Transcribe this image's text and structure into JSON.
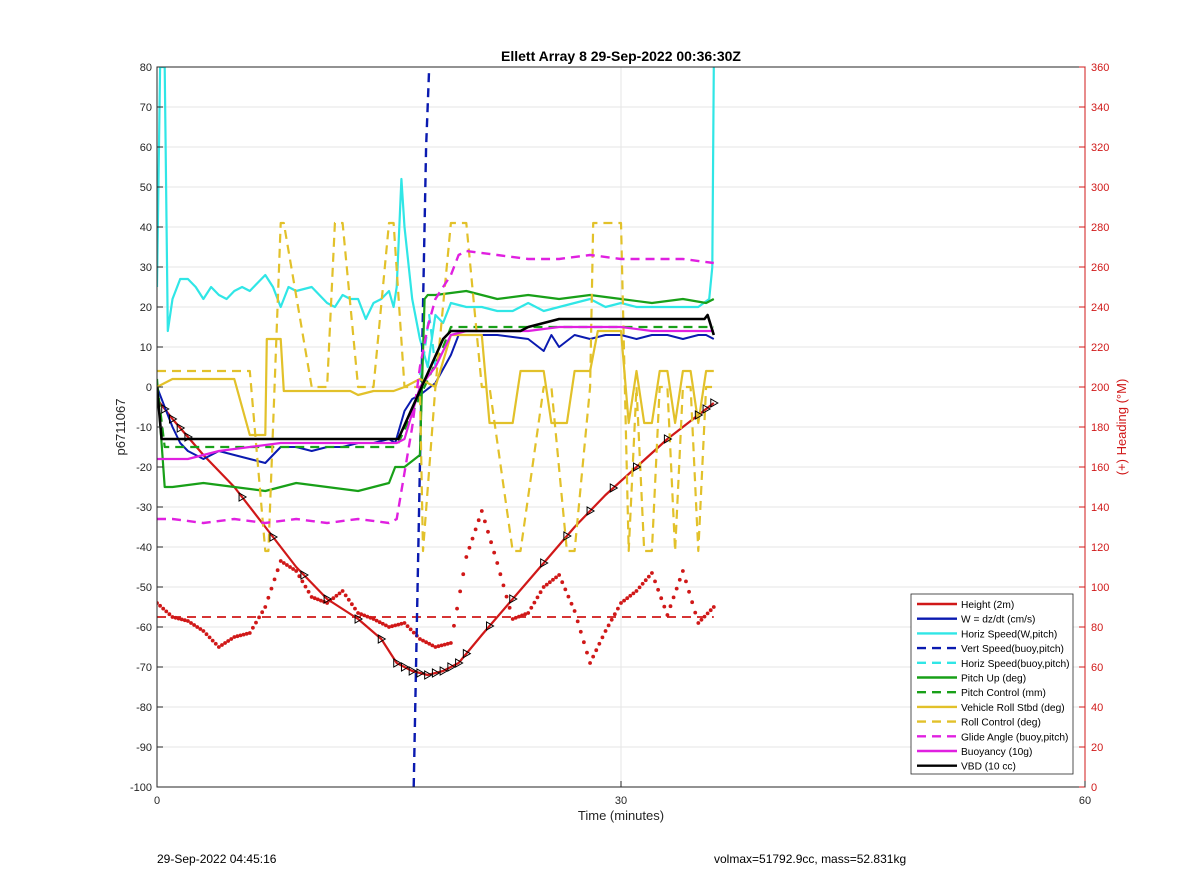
{
  "chart_data": {
    "type": "line",
    "title": "Ellett Array 8 29-Sep-2022 00:36:30Z",
    "xlabel": "Time (minutes)",
    "ylabel": "p6711067",
    "ylabel_right": "(+) Heading (°M)",
    "xlim": [
      0,
      60
    ],
    "ylim": [
      -100,
      80
    ],
    "ylim_right": [
      0,
      360
    ],
    "xticks": [
      0,
      30,
      60
    ],
    "yticks": [
      80,
      70,
      60,
      50,
      40,
      30,
      20,
      10,
      0,
      -10,
      -20,
      -30,
      -40,
      -50,
      -60,
      -70,
      -80,
      -90,
      -100
    ],
    "yticks_right": [
      360,
      340,
      320,
      300,
      280,
      260,
      240,
      220,
      200,
      180,
      160,
      140,
      120,
      100,
      80,
      60,
      40,
      20,
      0
    ],
    "grid": true,
    "legend_position": "bottom-right",
    "colors": {
      "height": "#d01818",
      "w": "#0a1ab0",
      "horiz": "#30e6e6",
      "vert_buoy": "#0a1ab0",
      "pitch": "#18a018",
      "roll": "#e2c12a",
      "glide": "#e020e0",
      "buoy": "#e020e0",
      "vbd": "#000000",
      "heading": "#d01818",
      "right_axis": "#d01818"
    },
    "series": [
      {
        "name": "Height (2m)",
        "key": "height",
        "style": "solid",
        "width": 2.2,
        "x": [
          0,
          1,
          3,
          5,
          7,
          9,
          11,
          13,
          14.5,
          15.5,
          16.5,
          17.5,
          18.5,
          19.5,
          21,
          23,
          25,
          27,
          29,
          31,
          33,
          35,
          36
        ],
        "y": [
          -3,
          -8,
          -17,
          -25,
          -35,
          -45,
          -53,
          -58,
          -63,
          -69,
          -71,
          -72,
          -71,
          -69,
          -62,
          -53,
          -44,
          -35,
          -27,
          -20,
          -13,
          -7,
          -4
        ]
      },
      {
        "name": "W = dz/dt (cm/s)",
        "key": "w",
        "style": "solid",
        "width": 2,
        "x": [
          0,
          0.5,
          1,
          1.5,
          2,
          3,
          4,
          5,
          6,
          7,
          8,
          9,
          10,
          11,
          12,
          13,
          14,
          15,
          15.4,
          16,
          16.5,
          17,
          18,
          19,
          19.5,
          20,
          22,
          24,
          25,
          25.5,
          26,
          27,
          28,
          29,
          30,
          31,
          32,
          33,
          34,
          35,
          35.5,
          36
        ],
        "y": [
          0,
          -5,
          -10,
          -14,
          -16,
          -18,
          -16,
          -17,
          -18,
          -19,
          -15,
          -15,
          -16,
          -15,
          -15,
          -14,
          -14,
          -13,
          -14,
          -6,
          -3,
          -2,
          1,
          8,
          13,
          13,
          13,
          12,
          9,
          13,
          10,
          13,
          12,
          13,
          13,
          12,
          13,
          13,
          12,
          13,
          13,
          12
        ]
      },
      {
        "name": "Horiz Speed(W,pitch)",
        "key": "horiz",
        "style": "solid",
        "width": 2.2,
        "x": [
          0,
          0.2,
          0.3,
          0.5,
          0.7,
          1,
          1.5,
          2,
          2.5,
          3,
          3.5,
          4,
          4.5,
          5,
          5.5,
          6,
          6.5,
          7,
          7.5,
          8,
          8.5,
          9,
          10,
          11,
          11.5,
          12,
          12.5,
          13,
          13.5,
          14,
          14.5,
          15,
          15.3,
          15.5,
          15.8,
          16,
          16.5,
          17,
          17.5,
          18,
          18.5,
          19,
          20,
          21,
          22,
          23,
          24,
          25,
          26,
          27,
          28,
          29,
          30,
          31,
          32,
          33,
          34,
          35,
          35.7,
          35.9,
          36
        ],
        "y": [
          25,
          80,
          80,
          80,
          14,
          22,
          27,
          27,
          25,
          22,
          25,
          23,
          22,
          24,
          25,
          24,
          26,
          28,
          25,
          20,
          25,
          24,
          25,
          21,
          20,
          23,
          22,
          22,
          17,
          21,
          22,
          24,
          20,
          25,
          52,
          40,
          22,
          12,
          5,
          18,
          16,
          21,
          20,
          20,
          19,
          19,
          21,
          19,
          20,
          21,
          22,
          20,
          21,
          20,
          20,
          20,
          20,
          20,
          22,
          30,
          80
        ]
      },
      {
        "name": "Vert Speed(buoy,pitch)",
        "key": "vert_buoy",
        "style": "dashed",
        "width": 2.4,
        "x": [
          16.6,
          16.8,
          17,
          17.2,
          17.4,
          17.6
        ],
        "y": [
          -100,
          -60,
          -20,
          20,
          60,
          80
        ]
      },
      {
        "name": "Horiz Speed(buoy,pitch)",
        "key": "horiz",
        "style": "dashed",
        "width": 2.2,
        "x": [
          17,
          17.3,
          17.6,
          18
        ],
        "y": [
          3,
          9,
          18,
          5
        ]
      },
      {
        "name": "Pitch Up (deg)",
        "key": "pitch",
        "style": "solid",
        "width": 2.2,
        "x": [
          0,
          0.5,
          1,
          3,
          5,
          7,
          9,
          11,
          13,
          15,
          15.4,
          15.5,
          16,
          17,
          17.3,
          17.5,
          18,
          20,
          22,
          24,
          26,
          28,
          30,
          32,
          34,
          35.5,
          36
        ],
        "y": [
          2,
          -25,
          -25,
          -24,
          -25,
          -26,
          -24,
          -25,
          -26,
          -24,
          -20,
          -20,
          -20,
          -17,
          22,
          23,
          23,
          24,
          22,
          23,
          22,
          23,
          22,
          21,
          22,
          21,
          22
        ]
      },
      {
        "name": "Pitch Control (mm)",
        "key": "pitch",
        "style": "dashed",
        "width": 2.2,
        "x": [
          0,
          0.5,
          1,
          15.4,
          15.6,
          18.5,
          19,
          36
        ],
        "y": [
          1,
          -15,
          -15,
          -15,
          -14,
          10,
          15,
          15
        ]
      },
      {
        "name": "Vehicle Roll Stbd (deg)",
        "key": "roll",
        "style": "solid",
        "width": 2.2,
        "x": [
          0,
          0.5,
          1,
          3,
          5,
          6,
          7,
          7.1,
          8,
          8.2,
          10,
          10.2,
          12,
          12.5,
          13,
          14,
          15,
          15.3,
          16,
          17,
          18,
          19,
          20,
          21,
          21.5,
          23,
          23.5,
          25,
          25.5,
          26.5,
          27,
          28,
          28.5,
          30,
          30.5,
          31,
          31.5,
          32,
          32.5,
          33,
          33.5,
          34,
          34.5,
          35,
          35.5,
          36
        ],
        "y": [
          0,
          1,
          2,
          2,
          2,
          -12,
          -12,
          12,
          12,
          -1,
          -1,
          -1,
          -1,
          -1,
          -2,
          -1,
          -1,
          -1,
          0,
          2,
          0,
          13,
          13,
          13,
          -9,
          -9,
          4,
          4,
          -9,
          -9,
          4,
          4,
          14,
          14,
          -9,
          4,
          -9,
          -9,
          4,
          4,
          -9,
          4,
          4,
          -9,
          4,
          4
        ]
      },
      {
        "name": "Roll Control (deg)",
        "key": "roll",
        "style": "dashed",
        "width": 2.2,
        "x": [
          0,
          0.5,
          3,
          6,
          7,
          7.2,
          8,
          8.2,
          10,
          11,
          11.5,
          12,
          13,
          14,
          15,
          15.3,
          16,
          17,
          17.2,
          18,
          19,
          20,
          21,
          21.5,
          23,
          23.5,
          25,
          25.5,
          26.5,
          27,
          28,
          28.2,
          30,
          30.5,
          31,
          31.5,
          32,
          32.5,
          33,
          33.5,
          34,
          34.5,
          35,
          35.5,
          36
        ],
        "y": [
          4,
          4,
          4,
          4,
          -41,
          -41,
          41,
          41,
          0,
          0,
          41,
          41,
          0,
          0,
          41,
          41,
          0,
          0,
          -41,
          0,
          41,
          41,
          0,
          0,
          -41,
          -41,
          0,
          0,
          -41,
          -41,
          0,
          41,
          41,
          -41,
          0,
          -41,
          -41,
          0,
          0,
          -41,
          0,
          0,
          -41,
          0,
          0
        ]
      },
      {
        "name": "Glide Angle (buoy,pitch)",
        "key": "glide",
        "style": "dashed",
        "width": 2.4,
        "x": [
          0,
          1,
          3,
          5,
          7,
          9,
          11,
          13,
          15,
          15.5,
          16.5,
          17,
          17.5,
          18,
          18.5,
          19,
          19.5,
          20,
          22,
          24,
          26,
          28,
          30,
          32,
          34,
          36
        ],
        "y": [
          -33,
          -33,
          -34,
          -33,
          -34,
          -33,
          -34,
          -33,
          -34,
          -33,
          -10,
          5,
          15,
          22,
          25,
          28,
          33,
          34,
          33,
          32,
          32,
          33,
          32,
          32,
          32,
          31
        ]
      },
      {
        "name": "Buoyancy (10g)",
        "key": "buoy",
        "style": "solid",
        "width": 2.2,
        "x": [
          0,
          1,
          2,
          4,
          6,
          8,
          12,
          15.5,
          16,
          17,
          18,
          19,
          20,
          22,
          24,
          26,
          28,
          30,
          32,
          34,
          36
        ],
        "y": [
          -18,
          -18,
          -18,
          -16,
          -15,
          -14,
          -14,
          -14,
          -13,
          0,
          5,
          13,
          14,
          14,
          14,
          15,
          15,
          15,
          14,
          14,
          14
        ]
      },
      {
        "name": "VBD (10 cc)",
        "key": "vbd",
        "style": "solid",
        "width": 2.6,
        "x": [
          0,
          0.3,
          0.5,
          1,
          15.5,
          15.6,
          18.5,
          19,
          23.5,
          24,
          25,
          26,
          35.4,
          35.6,
          36
        ],
        "y": [
          0,
          -13,
          -13,
          -13,
          -13,
          -13,
          12,
          14,
          14,
          15,
          16,
          17,
          17,
          18,
          13
        ]
      }
    ],
    "heading_scatter": {
      "name": "Heading",
      "axis": "right",
      "x": [
        0,
        1,
        2,
        3,
        4,
        5,
        6,
        7,
        8,
        9,
        10,
        11,
        12,
        13,
        14,
        15,
        16,
        17,
        18,
        19,
        20,
        21,
        22,
        23,
        24,
        25,
        26,
        27,
        28,
        29,
        30,
        31,
        32,
        33,
        34,
        35,
        36
      ],
      "y": [
        92,
        85,
        83,
        78,
        70,
        75,
        77,
        90,
        113,
        108,
        95,
        92,
        98,
        87,
        84,
        80,
        82,
        74,
        70,
        72,
        115,
        138,
        112,
        84,
        87,
        100,
        106,
        88,
        62,
        78,
        92,
        98,
        107,
        86,
        108,
        82,
        90
      ]
    },
    "heading_reference": {
      "axis": "right",
      "value": 85,
      "x": [
        0,
        36
      ]
    },
    "height_markers_x": [
      0.5,
      1,
      1.5,
      2,
      5.5,
      7.5,
      9.5,
      11,
      13,
      14.5,
      15.5,
      16,
      16.5,
      17,
      17.5,
      18,
      18.5,
      19,
      19.5,
      20,
      21.5,
      23,
      25,
      26.5,
      28,
      29.5,
      31,
      33,
      35,
      35.5,
      36
    ],
    "legend": [
      {
        "label": "Height (2m)",
        "key": "height",
        "style": "solid"
      },
      {
        "label": "W = dz/dt (cm/s)",
        "key": "w",
        "style": "solid"
      },
      {
        "label": "Horiz Speed(W,pitch)",
        "key": "horiz",
        "style": "solid"
      },
      {
        "label": "Vert Speed(buoy,pitch)",
        "key": "vert_buoy",
        "style": "dashed"
      },
      {
        "label": "Horiz Speed(buoy,pitch)",
        "key": "horiz",
        "style": "dashed"
      },
      {
        "label": "Pitch Up (deg)",
        "key": "pitch",
        "style": "solid"
      },
      {
        "label": "Pitch Control (mm)",
        "key": "pitch",
        "style": "dashed"
      },
      {
        "label": "Vehicle Roll Stbd (deg)",
        "key": "roll",
        "style": "solid"
      },
      {
        "label": "Roll Control (deg)",
        "key": "roll",
        "style": "dashed"
      },
      {
        "label": "Glide Angle (buoy,pitch)",
        "key": "glide",
        "style": "dashed"
      },
      {
        "label": "Buoyancy (10g)",
        "key": "buoy",
        "style": "solid"
      },
      {
        "label": "VBD (10 cc)",
        "key": "vbd",
        "style": "solid"
      }
    ]
  },
  "footer": {
    "left": "29-Sep-2022 04:45:16",
    "right": "volmax=51792.9cc, mass=52.831kg"
  }
}
